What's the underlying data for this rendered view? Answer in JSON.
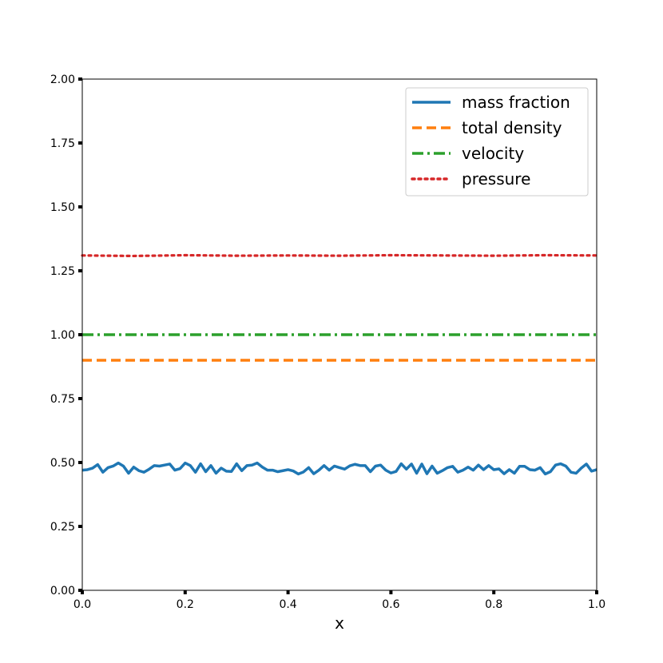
{
  "chart_data": {
    "type": "line",
    "title": "",
    "xlabel": "x",
    "ylabel": "",
    "xlim": [
      0.0,
      1.0
    ],
    "ylim": [
      0.0,
      2.0
    ],
    "xticks": [
      "0.0",
      "0.2",
      "0.4",
      "0.6",
      "0.8",
      "1.0"
    ],
    "yticks": [
      "0.00",
      "0.25",
      "0.50",
      "0.75",
      "1.00",
      "1.25",
      "1.50",
      "1.75",
      "2.00"
    ],
    "grid": false,
    "legend_position": "top-right",
    "series": [
      {
        "name": "mass fraction",
        "color": "#1f77b4",
        "style": "solid",
        "x": [
          0.0,
          0.01,
          0.02,
          0.03,
          0.04,
          0.05,
          0.06,
          0.07,
          0.08,
          0.09,
          0.1,
          0.11,
          0.12,
          0.13,
          0.14,
          0.15,
          0.16,
          0.17,
          0.18,
          0.19,
          0.2,
          0.21,
          0.22,
          0.23,
          0.24,
          0.25,
          0.26,
          0.27,
          0.28,
          0.29,
          0.3,
          0.31,
          0.32,
          0.33,
          0.34,
          0.35,
          0.36,
          0.37,
          0.38,
          0.39,
          0.4,
          0.41,
          0.42,
          0.43,
          0.44,
          0.45,
          0.46,
          0.47,
          0.48,
          0.49,
          0.5,
          0.51,
          0.52,
          0.53,
          0.54,
          0.55,
          0.56,
          0.57,
          0.58,
          0.59,
          0.6,
          0.61,
          0.62,
          0.63,
          0.64,
          0.65,
          0.66,
          0.67,
          0.68,
          0.69,
          0.7,
          0.71,
          0.72,
          0.73,
          0.74,
          0.75,
          0.76,
          0.77,
          0.78,
          0.79,
          0.8,
          0.81,
          0.82,
          0.83,
          0.84,
          0.85,
          0.86,
          0.87,
          0.88,
          0.89,
          0.9,
          0.91,
          0.92,
          0.93,
          0.94,
          0.95,
          0.96,
          0.97,
          0.98,
          0.99,
          1.0
        ],
        "y": [
          0.47,
          0.472,
          0.478,
          0.492,
          0.462,
          0.48,
          0.486,
          0.498,
          0.486,
          0.458,
          0.482,
          0.468,
          0.462,
          0.474,
          0.488,
          0.486,
          0.49,
          0.494,
          0.47,
          0.476,
          0.498,
          0.488,
          0.462,
          0.495,
          0.464,
          0.488,
          0.458,
          0.478,
          0.466,
          0.465,
          0.495,
          0.468,
          0.488,
          0.49,
          0.498,
          0.482,
          0.47,
          0.47,
          0.464,
          0.468,
          0.472,
          0.467,
          0.455,
          0.463,
          0.48,
          0.456,
          0.47,
          0.488,
          0.47,
          0.486,
          0.48,
          0.474,
          0.487,
          0.493,
          0.488,
          0.488,
          0.464,
          0.486,
          0.49,
          0.47,
          0.459,
          0.465,
          0.495,
          0.474,
          0.494,
          0.458,
          0.494,
          0.456,
          0.486,
          0.458,
          0.468,
          0.48,
          0.485,
          0.462,
          0.47,
          0.482,
          0.47,
          0.49,
          0.472,
          0.488,
          0.472,
          0.475,
          0.456,
          0.472,
          0.458,
          0.485,
          0.485,
          0.472,
          0.47,
          0.48,
          0.455,
          0.464,
          0.49,
          0.495,
          0.486,
          0.462,
          0.458,
          0.478,
          0.494,
          0.466,
          0.472
        ],
        "values_note": ""
      },
      {
        "name": "total density",
        "color": "#ff7f0e",
        "style": "dashed",
        "x": [
          0.0,
          1.0
        ],
        "y": [
          0.9,
          0.9
        ]
      },
      {
        "name": "velocity",
        "color": "#2ca02c",
        "style": "dashdot",
        "x": [
          0.0,
          1.0
        ],
        "y": [
          1.0,
          1.0
        ]
      },
      {
        "name": "pressure",
        "color": "#d62728",
        "style": "dotted",
        "x": [
          0.0,
          0.1,
          0.2,
          0.3,
          0.4,
          0.5,
          0.6,
          0.7,
          0.8,
          0.9,
          1.0
        ],
        "y": [
          1.31,
          1.308,
          1.311,
          1.309,
          1.31,
          1.309,
          1.311,
          1.31,
          1.309,
          1.311,
          1.31
        ]
      }
    ]
  }
}
